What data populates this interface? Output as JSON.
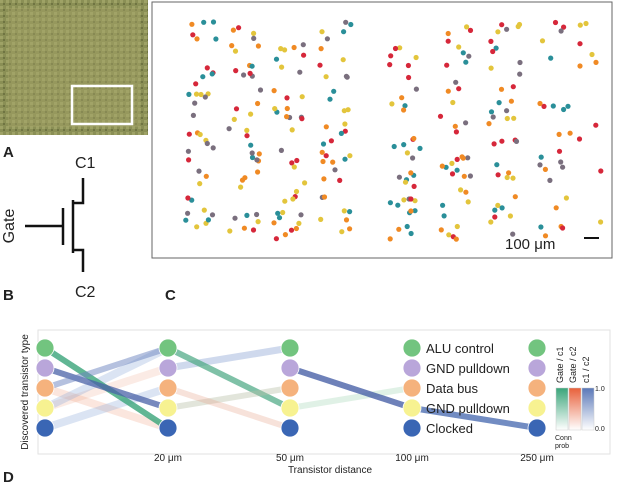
{
  "panels": {
    "a": "A",
    "b": "B",
    "c": "C",
    "d": "D"
  },
  "diagram": {
    "gate": "Gate",
    "c1": "C1",
    "c2": "C2"
  },
  "scale_bar": "100 μm",
  "plot": {
    "y_label": "Discovered transistor type",
    "x_label": "Transistor distance",
    "x_ticks": [
      "20 μm",
      "50 μm",
      "100 μm",
      "250 μm"
    ],
    "legend": [
      "ALU control",
      "GND  pulldown",
      "Data bus",
      "GND  pulldown",
      "Clocked"
    ],
    "colorbar": {
      "labels": [
        "Gate / c1",
        "Gate / c2",
        "c1 / c2"
      ],
      "max": "1.0",
      "min": "0.0",
      "title": [
        "Conn",
        "prob"
      ]
    }
  }
}
